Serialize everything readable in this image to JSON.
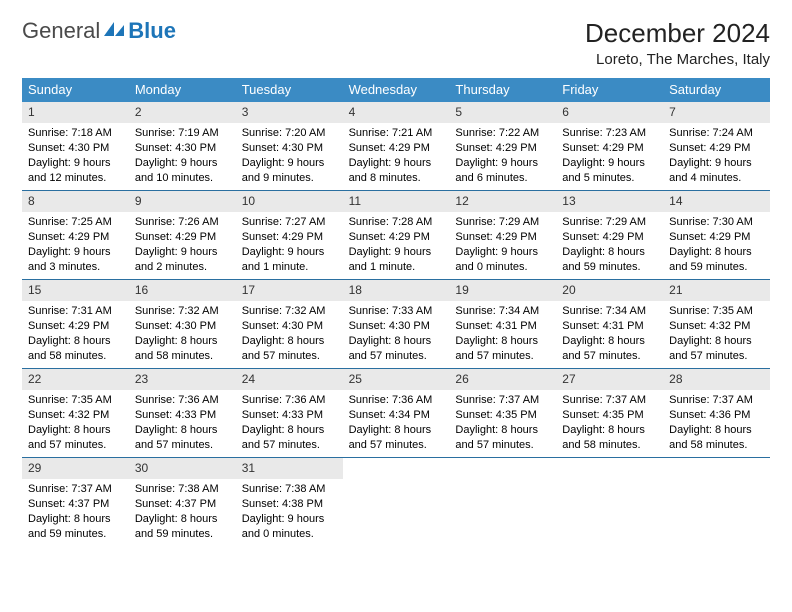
{
  "logo": {
    "part1": "General",
    "part2": "Blue"
  },
  "title": "December 2024",
  "subtitle": "Loreto, The Marches, Italy",
  "colors": {
    "header_blue": "#3b8bc4",
    "daynum_gray": "#e9e9e9",
    "rule_blue": "#2a6fa0",
    "text": "#000000"
  },
  "typography": {
    "base_font": "Arial",
    "title_fontsize": 26,
    "subtitle_fontsize": 15,
    "dow_fontsize": 13,
    "cell_fontsize": 11
  },
  "layout": {
    "columns": 7,
    "rows": 5,
    "first_weekday": "Sunday"
  },
  "dow": [
    "Sunday",
    "Monday",
    "Tuesday",
    "Wednesday",
    "Thursday",
    "Friday",
    "Saturday"
  ],
  "cells": [
    {
      "n": "1",
      "sr": "Sunrise: 7:18 AM",
      "ss": "Sunset: 4:30 PM",
      "d1": "Daylight: 9 hours",
      "d2": "and 12 minutes."
    },
    {
      "n": "2",
      "sr": "Sunrise: 7:19 AM",
      "ss": "Sunset: 4:30 PM",
      "d1": "Daylight: 9 hours",
      "d2": "and 10 minutes."
    },
    {
      "n": "3",
      "sr": "Sunrise: 7:20 AM",
      "ss": "Sunset: 4:30 PM",
      "d1": "Daylight: 9 hours",
      "d2": "and 9 minutes."
    },
    {
      "n": "4",
      "sr": "Sunrise: 7:21 AM",
      "ss": "Sunset: 4:29 PM",
      "d1": "Daylight: 9 hours",
      "d2": "and 8 minutes."
    },
    {
      "n": "5",
      "sr": "Sunrise: 7:22 AM",
      "ss": "Sunset: 4:29 PM",
      "d1": "Daylight: 9 hours",
      "d2": "and 6 minutes."
    },
    {
      "n": "6",
      "sr": "Sunrise: 7:23 AM",
      "ss": "Sunset: 4:29 PM",
      "d1": "Daylight: 9 hours",
      "d2": "and 5 minutes."
    },
    {
      "n": "7",
      "sr": "Sunrise: 7:24 AM",
      "ss": "Sunset: 4:29 PM",
      "d1": "Daylight: 9 hours",
      "d2": "and 4 minutes."
    },
    {
      "n": "8",
      "sr": "Sunrise: 7:25 AM",
      "ss": "Sunset: 4:29 PM",
      "d1": "Daylight: 9 hours",
      "d2": "and 3 minutes."
    },
    {
      "n": "9",
      "sr": "Sunrise: 7:26 AM",
      "ss": "Sunset: 4:29 PM",
      "d1": "Daylight: 9 hours",
      "d2": "and 2 minutes."
    },
    {
      "n": "10",
      "sr": "Sunrise: 7:27 AM",
      "ss": "Sunset: 4:29 PM",
      "d1": "Daylight: 9 hours",
      "d2": "and 1 minute."
    },
    {
      "n": "11",
      "sr": "Sunrise: 7:28 AM",
      "ss": "Sunset: 4:29 PM",
      "d1": "Daylight: 9 hours",
      "d2": "and 1 minute."
    },
    {
      "n": "12",
      "sr": "Sunrise: 7:29 AM",
      "ss": "Sunset: 4:29 PM",
      "d1": "Daylight: 9 hours",
      "d2": "and 0 minutes."
    },
    {
      "n": "13",
      "sr": "Sunrise: 7:29 AM",
      "ss": "Sunset: 4:29 PM",
      "d1": "Daylight: 8 hours",
      "d2": "and 59 minutes."
    },
    {
      "n": "14",
      "sr": "Sunrise: 7:30 AM",
      "ss": "Sunset: 4:29 PM",
      "d1": "Daylight: 8 hours",
      "d2": "and 59 minutes."
    },
    {
      "n": "15",
      "sr": "Sunrise: 7:31 AM",
      "ss": "Sunset: 4:29 PM",
      "d1": "Daylight: 8 hours",
      "d2": "and 58 minutes."
    },
    {
      "n": "16",
      "sr": "Sunrise: 7:32 AM",
      "ss": "Sunset: 4:30 PM",
      "d1": "Daylight: 8 hours",
      "d2": "and 58 minutes."
    },
    {
      "n": "17",
      "sr": "Sunrise: 7:32 AM",
      "ss": "Sunset: 4:30 PM",
      "d1": "Daylight: 8 hours",
      "d2": "and 57 minutes."
    },
    {
      "n": "18",
      "sr": "Sunrise: 7:33 AM",
      "ss": "Sunset: 4:30 PM",
      "d1": "Daylight: 8 hours",
      "d2": "and 57 minutes."
    },
    {
      "n": "19",
      "sr": "Sunrise: 7:34 AM",
      "ss": "Sunset: 4:31 PM",
      "d1": "Daylight: 8 hours",
      "d2": "and 57 minutes."
    },
    {
      "n": "20",
      "sr": "Sunrise: 7:34 AM",
      "ss": "Sunset: 4:31 PM",
      "d1": "Daylight: 8 hours",
      "d2": "and 57 minutes."
    },
    {
      "n": "21",
      "sr": "Sunrise: 7:35 AM",
      "ss": "Sunset: 4:32 PM",
      "d1": "Daylight: 8 hours",
      "d2": "and 57 minutes."
    },
    {
      "n": "22",
      "sr": "Sunrise: 7:35 AM",
      "ss": "Sunset: 4:32 PM",
      "d1": "Daylight: 8 hours",
      "d2": "and 57 minutes."
    },
    {
      "n": "23",
      "sr": "Sunrise: 7:36 AM",
      "ss": "Sunset: 4:33 PM",
      "d1": "Daylight: 8 hours",
      "d2": "and 57 minutes."
    },
    {
      "n": "24",
      "sr": "Sunrise: 7:36 AM",
      "ss": "Sunset: 4:33 PM",
      "d1": "Daylight: 8 hours",
      "d2": "and 57 minutes."
    },
    {
      "n": "25",
      "sr": "Sunrise: 7:36 AM",
      "ss": "Sunset: 4:34 PM",
      "d1": "Daylight: 8 hours",
      "d2": "and 57 minutes."
    },
    {
      "n": "26",
      "sr": "Sunrise: 7:37 AM",
      "ss": "Sunset: 4:35 PM",
      "d1": "Daylight: 8 hours",
      "d2": "and 57 minutes."
    },
    {
      "n": "27",
      "sr": "Sunrise: 7:37 AM",
      "ss": "Sunset: 4:35 PM",
      "d1": "Daylight: 8 hours",
      "d2": "and 58 minutes."
    },
    {
      "n": "28",
      "sr": "Sunrise: 7:37 AM",
      "ss": "Sunset: 4:36 PM",
      "d1": "Daylight: 8 hours",
      "d2": "and 58 minutes."
    },
    {
      "n": "29",
      "sr": "Sunrise: 7:37 AM",
      "ss": "Sunset: 4:37 PM",
      "d1": "Daylight: 8 hours",
      "d2": "and 59 minutes."
    },
    {
      "n": "30",
      "sr": "Sunrise: 7:38 AM",
      "ss": "Sunset: 4:37 PM",
      "d1": "Daylight: 8 hours",
      "d2": "and 59 minutes."
    },
    {
      "n": "31",
      "sr": "Sunrise: 7:38 AM",
      "ss": "Sunset: 4:38 PM",
      "d1": "Daylight: 9 hours",
      "d2": "and 0 minutes."
    }
  ]
}
